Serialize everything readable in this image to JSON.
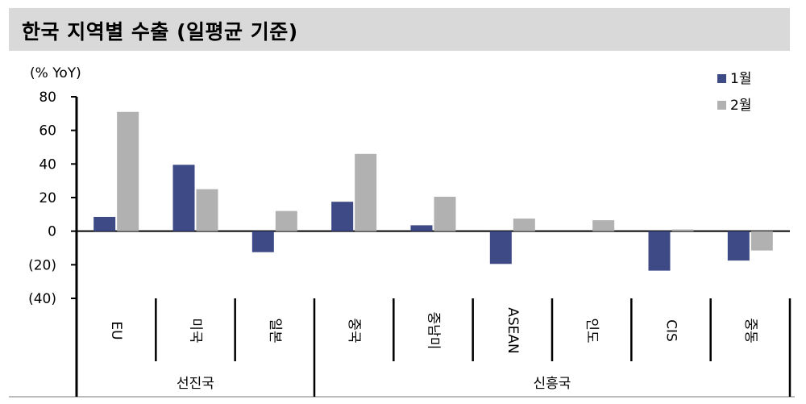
{
  "header": {
    "title": "한국 지역별 수출 (일평균 기준)"
  },
  "colors": {
    "series1": "#3e4a86",
    "series2": "#b1b1b1",
    "title_bg": "#d9d9d9"
  },
  "chart_data": {
    "type": "bar",
    "title": "한국 지역별 수출 (일평균 기준)",
    "ylabel": "(% YoY)",
    "ylim": [
      -40,
      80
    ],
    "yticks": [
      80,
      60,
      40,
      20,
      0,
      -20,
      -40
    ],
    "ytick_labels": [
      "80",
      "60",
      "40",
      "20",
      "0",
      "(20)",
      "(40)"
    ],
    "categories": [
      "EU",
      "미국",
      "일본",
      "중국",
      "중남미",
      "ASEAN",
      "인도",
      "CIS",
      "중동"
    ],
    "groups": [
      {
        "label": "선진국",
        "categories": [
          "EU",
          "미국",
          "일본"
        ]
      },
      {
        "label": "신흥국",
        "categories": [
          "중국",
          "중남미",
          "ASEAN",
          "인도",
          "CIS",
          "중동"
        ]
      }
    ],
    "series": [
      {
        "name": "1월",
        "color": "#3e4a86",
        "values": [
          8.5,
          39.5,
          -12.5,
          17.5,
          3.5,
          -19.5,
          0,
          -23.5,
          -17.5
        ]
      },
      {
        "name": "2월",
        "color": "#b1b1b1",
        "values": [
          71,
          25,
          12,
          46,
          20.5,
          7.5,
          6.5,
          1,
          -11.5
        ]
      }
    ],
    "legend": "top-right",
    "grid": false
  }
}
